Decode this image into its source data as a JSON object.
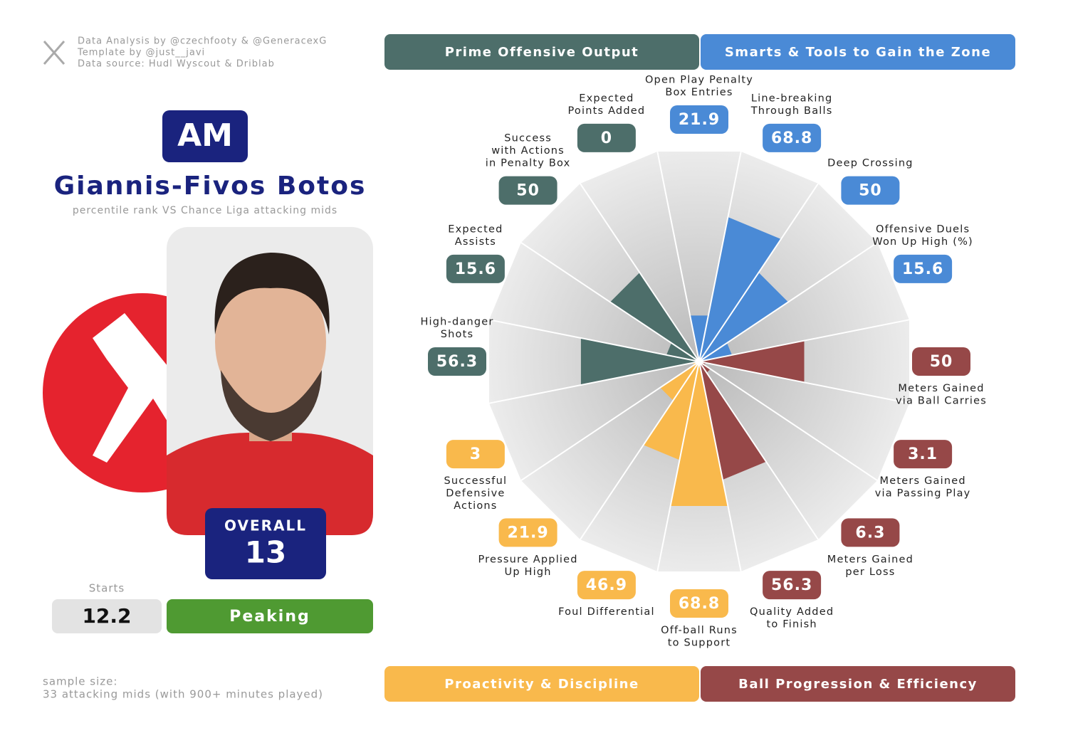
{
  "header": {
    "credits": [
      "Data Analysis by @czechfooty & @GeneracexG",
      "Template by @just__javi",
      "Data source: Hudl Wyscout & Driblab"
    ]
  },
  "player": {
    "position": "AM",
    "name": "Giannis-Fivos Botos",
    "subtitle": "percentile rank VS Chance Liga attacking mids",
    "overall_label": "OVERALL",
    "overall": 13,
    "starts_label": "Starts",
    "starts": 12.2,
    "form": "Peaking"
  },
  "footer": {
    "sample": [
      "sample size:",
      "33 attacking mids (with 900+ minutes played)"
    ]
  },
  "chart_data": {
    "type": "pizza",
    "rlim": [
      0,
      100
    ],
    "series": [
      {
        "name": "Smarts & Tools to Gain the Zone",
        "color": "#4a8ad6",
        "categories": [
          [
            "Open Play Penalty",
            "Box Entries"
          ],
          [
            "Line-breaking",
            "Through Balls"
          ],
          [
            "Deep Crossing"
          ],
          [
            "Offensive Duels",
            "Won Up High (%)"
          ]
        ],
        "values": [
          21.9,
          68.8,
          50,
          15.6
        ]
      },
      {
        "name": "Ball Progression & Efficiency",
        "color": "#964848",
        "categories": [
          [
            "Meters Gained",
            "via Ball Carries"
          ],
          [
            "Meters Gained",
            "via Passing Play"
          ],
          [
            "Meters Gained",
            "per Loss"
          ],
          [
            "Quality Added",
            "to Finish"
          ]
        ],
        "values": [
          50,
          3.1,
          6.3,
          56.3
        ]
      },
      {
        "name": "Proactivity & Discipline",
        "color": "#f9b94c",
        "categories": [
          [
            "Off-ball Runs",
            "to Support"
          ],
          [
            "Foul Differential"
          ],
          [
            "Pressure Applied",
            "Up High"
          ],
          [
            "Successful",
            "Defensive",
            "Actions"
          ]
        ],
        "values": [
          68.8,
          46.9,
          21.9,
          3
        ]
      },
      {
        "name": "Prime Offensive Output",
        "color": "#4d6e6a",
        "categories": [
          [
            "High-danger",
            "Shots"
          ],
          [
            "Expected",
            "Assists"
          ],
          [
            "Success",
            "with Actions",
            "in Penalty Box"
          ],
          [
            "Expected",
            "Points Added"
          ]
        ],
        "values": [
          56.3,
          15.6,
          50,
          0
        ]
      }
    ]
  }
}
